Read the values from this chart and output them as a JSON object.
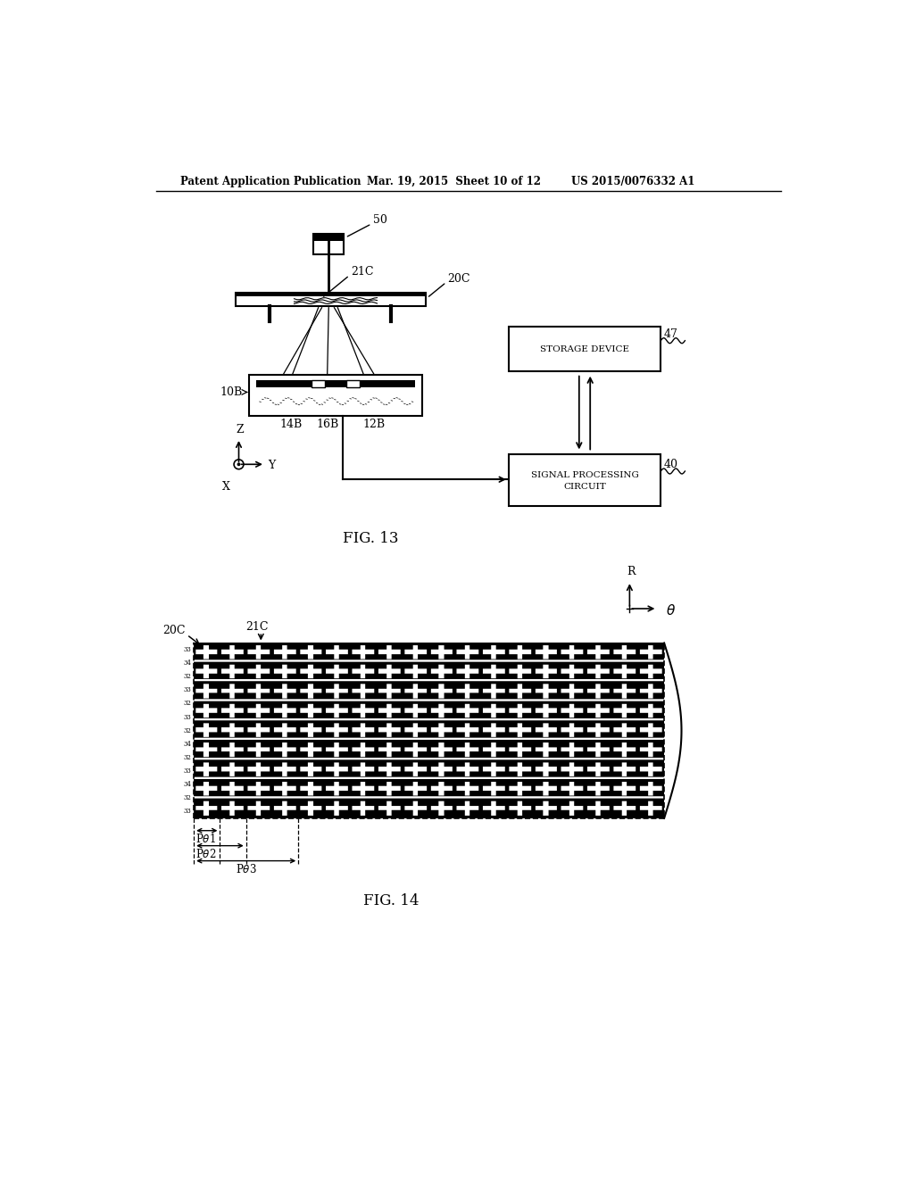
{
  "bg_color": "#ffffff",
  "header_text": "Patent Application Publication",
  "header_date": "Mar. 19, 2015  Sheet 10 of 12",
  "header_patent": "US 2015/0076332 A1",
  "fig13_label": "FIG. 13",
  "fig14_label": "FIG. 14",
  "line_color": "#000000"
}
